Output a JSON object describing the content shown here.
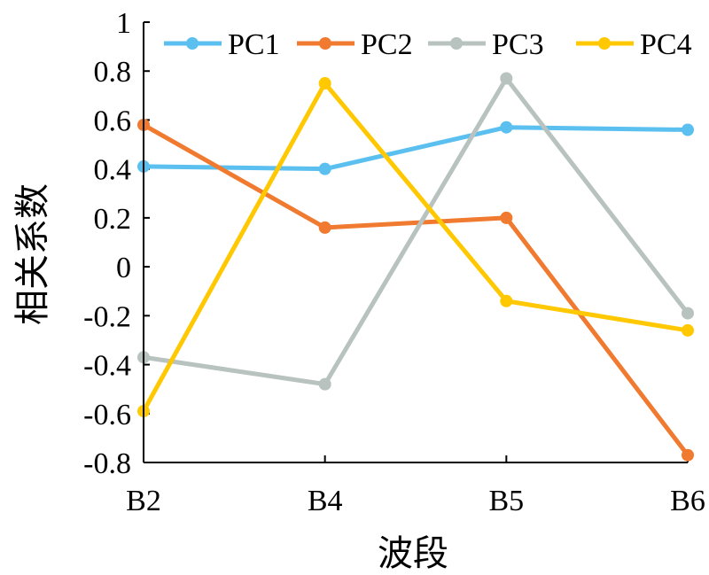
{
  "chart_data": {
    "type": "line",
    "xlabel": "波段",
    "ylabel": "相关系数",
    "categories": [
      "B2",
      "B4",
      "B5",
      "B6"
    ],
    "ylim": [
      -0.8,
      1
    ],
    "yticks": [
      "1",
      "0.8",
      "0.6",
      "0.4",
      "0.2",
      "0",
      "-0.2",
      "-0.4",
      "-0.6",
      "-0.8"
    ],
    "legend_position": "top",
    "grid": false,
    "series": [
      {
        "name": "PC1",
        "color": "#5BC0F0",
        "values": [
          0.41,
          0.4,
          0.57,
          0.56
        ]
      },
      {
        "name": "PC2",
        "color": "#F07A30",
        "values": [
          0.58,
          0.16,
          0.2,
          -0.77
        ]
      },
      {
        "name": "PC3",
        "color": "#B8C2BE",
        "values": [
          -0.37,
          -0.48,
          0.77,
          -0.19
        ]
      },
      {
        "name": "PC4",
        "color": "#FFC800",
        "values": [
          -0.59,
          0.75,
          -0.14,
          -0.26
        ]
      }
    ]
  }
}
